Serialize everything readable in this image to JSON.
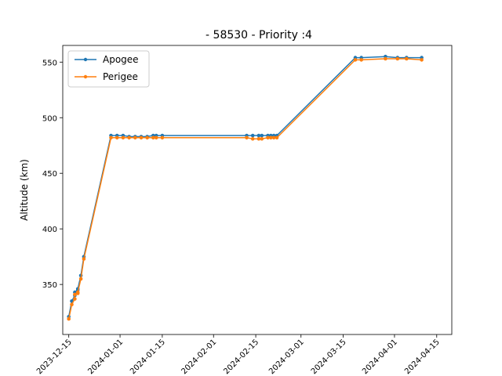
{
  "chart_data": {
    "type": "line",
    "title": " - 58530 - Priority :4",
    "xlabel": "",
    "ylabel": "Altitude (km)",
    "x_axis_type": "date",
    "xlim": [
      "2023-12-13",
      "2024-04-20"
    ],
    "ylim": [
      305,
      565
    ],
    "x_ticks": [
      "2023-12-15",
      "2024-01-01",
      "2024-01-15",
      "2024-02-01",
      "2024-02-15",
      "2024-03-01",
      "2024-03-15",
      "2024-04-01",
      "2024-04-15"
    ],
    "y_ticks": [
      350,
      400,
      450,
      500,
      550
    ],
    "grid": false,
    "legend_position": "top-left",
    "x": [
      "2023-12-15",
      "2023-12-16",
      "2023-12-17",
      "2023-12-17",
      "2023-12-18",
      "2023-12-18",
      "2023-12-19",
      "2023-12-20",
      "2023-12-29",
      "2023-12-31",
      "2024-01-02",
      "2024-01-04",
      "2024-01-06",
      "2024-01-08",
      "2024-01-10",
      "2024-01-12",
      "2024-01-13",
      "2024-01-15",
      "2024-02-12",
      "2024-02-14",
      "2024-02-16",
      "2024-02-17",
      "2024-02-19",
      "2024-02-20",
      "2024-02-21",
      "2024-02-22",
      "2024-03-19",
      "2024-03-21",
      "2024-03-29",
      "2024-04-02",
      "2024-04-05",
      "2024-04-10"
    ],
    "series": [
      {
        "name": "Apogee",
        "color": "#1f77b4",
        "values": [
          321,
          335,
          340,
          343,
          345,
          346,
          358,
          375,
          484,
          484,
          484,
          483,
          483,
          483,
          483,
          484,
          484,
          484,
          484,
          484,
          484,
          484,
          484,
          484,
          484,
          484,
          554,
          554,
          555,
          554,
          554,
          554
        ]
      },
      {
        "name": "Perigee",
        "color": "#ff7f0e",
        "values": [
          319,
          332,
          337,
          341,
          342,
          343,
          355,
          373,
          482,
          482,
          482,
          482,
          482,
          482,
          482,
          482,
          482,
          482,
          482,
          481,
          481,
          481,
          482,
          482,
          482,
          482,
          552,
          552,
          553,
          553,
          553,
          552
        ]
      }
    ]
  }
}
